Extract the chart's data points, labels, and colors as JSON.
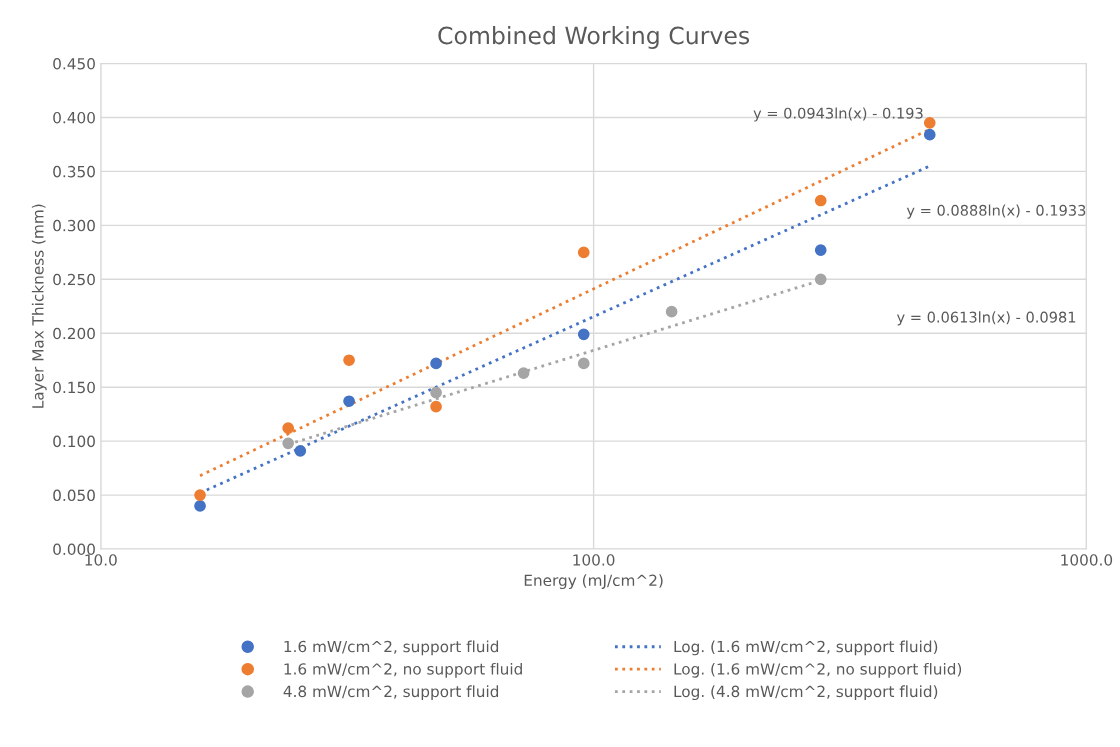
{
  "chart_data": {
    "type": "scatter",
    "title": "Combined Working Curves",
    "xlabel": "Energy (mJ/cm^2)",
    "ylabel": "Layer Max Thickness (mm)",
    "log": "x",
    "xlim": [
      10,
      1000
    ],
    "xticks": [
      {
        "value": 10,
        "label": "10.0"
      },
      {
        "value": 100,
        "label": "100.0"
      },
      {
        "value": 1000,
        "label": "1000.0"
      }
    ],
    "ylim": [
      0,
      0.45
    ],
    "yticks": [
      {
        "value": 0,
        "label": "0.000"
      },
      {
        "value": 0.05,
        "label": "0.050"
      },
      {
        "value": 0.1,
        "label": "0.100"
      },
      {
        "value": 0.15,
        "label": "0.150"
      },
      {
        "value": 0.2,
        "label": "0.200"
      },
      {
        "value": 0.25,
        "label": "0.250"
      },
      {
        "value": 0.3,
        "label": "0.300"
      },
      {
        "value": 0.35,
        "label": "0.350"
      },
      {
        "value": 0.4,
        "label": "0.400"
      },
      {
        "value": 0.45,
        "label": "0.450"
      }
    ],
    "grid": true,
    "legend": "bottom",
    "marker": "circle",
    "series": [
      {
        "name": "1.6 mW/cm^2, support fluid",
        "color": "#4472c4",
        "x": [
          15.9,
          25.4,
          31.9,
          47.9,
          95.5,
          289,
          481
        ],
        "values": [
          0.04,
          0.091,
          0.137,
          0.172,
          0.199,
          0.277,
          0.384
        ]
      },
      {
        "name": "1.6 mW/cm^2, no support fluid",
        "color": "#ed7d31",
        "x": [
          15.9,
          24.0,
          31.9,
          47.9,
          95.5,
          289,
          481
        ],
        "values": [
          0.05,
          0.112,
          0.175,
          0.132,
          0.275,
          0.323,
          0.395
        ]
      },
      {
        "name": "4.8 mW/cm^2, support fluid",
        "color": "#a5a5a5",
        "x": [
          24.0,
          47.9,
          72.1,
          95.5,
          144,
          289
        ],
        "values": [
          0.098,
          0.145,
          0.163,
          0.172,
          0.22,
          0.25
        ]
      },
      {
        "name": "Log. (1.6 mW/cm^2, support fluid)",
        "type": "line",
        "marker": "none",
        "line_style": "dotted",
        "color": "#4472c4",
        "x": [
          15.9,
          481
        ],
        "values": [
          0.052,
          0.355
        ]
      },
      {
        "name": "Log. (1.6 mW/cm^2, no support fluid)",
        "type": "line",
        "marker": "none",
        "line_style": "dotted",
        "color": "#ed7d31",
        "x": [
          15.9,
          481
        ],
        "values": [
          0.068,
          0.389
        ]
      },
      {
        "name": "Log. (4.8 mW/cm^2, support fluid)",
        "type": "line",
        "marker": "none",
        "line_style": "dotted",
        "color": "#a5a5a5",
        "x": [
          24.0,
          289
        ],
        "values": [
          0.097,
          0.249
        ]
      }
    ],
    "annotations": [
      "y = 0.0943ln(x) - 0.193",
      "y = 0.0888ln(x) - 0.1933",
      "y = 0.0613ln(x) - 0.0981"
    ]
  }
}
